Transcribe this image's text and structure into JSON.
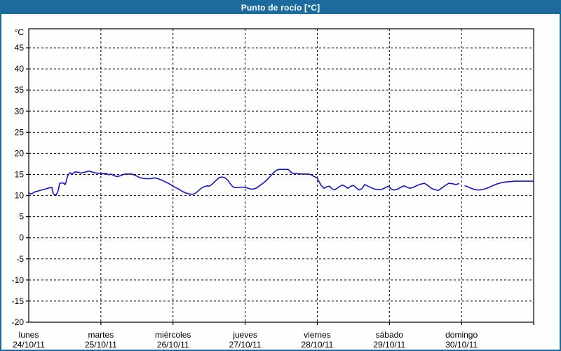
{
  "window": {
    "title": "Punto de rocío [°C]"
  },
  "colors": {
    "titlebar_bg": "#1c6a9e",
    "titlebar_text": "#ffffff",
    "page_bg": "#fdfefd",
    "axis": "#000000",
    "grid": "#000000",
    "series_line": "#1414c8"
  },
  "chart_data": {
    "type": "line",
    "title": "Punto de rocío [°C]",
    "y_unit_label": "°C",
    "ylim": [
      -20,
      49.5
    ],
    "yticks": [
      -20,
      -15,
      -10,
      -5,
      0,
      5,
      10,
      15,
      20,
      25,
      30,
      35,
      40,
      45
    ],
    "grid": true,
    "legend": "none",
    "x_axis": {
      "xlim_days": [
        0,
        7
      ],
      "days": [
        {
          "name": "lunes",
          "date": "24/10/11"
        },
        {
          "name": "martes",
          "date": "25/10/11"
        },
        {
          "name": "miércoles",
          "date": "26/10/11"
        },
        {
          "name": "jueves",
          "date": "27/10/11"
        },
        {
          "name": "viernes",
          "date": "28/10/11"
        },
        {
          "name": "sábado",
          "date": "29/10/11"
        },
        {
          "name": "domingo",
          "date": "30/10/11"
        }
      ]
    },
    "series": [
      {
        "name": "Punto de rocío",
        "color": "#1414c8",
        "units": "°C",
        "x_units": "days from 24/10/11 00:00",
        "segments": [
          [
            [
              0.0,
              10.6
            ],
            [
              0.039,
              10.4
            ],
            [
              0.088,
              10.9
            ],
            [
              0.156,
              11.2
            ],
            [
              0.224,
              11.5
            ],
            [
              0.282,
              11.8
            ],
            [
              0.321,
              11.9
            ],
            [
              0.34,
              10.4
            ],
            [
              0.379,
              10.1
            ],
            [
              0.408,
              11.2
            ],
            [
              0.428,
              12.9
            ],
            [
              0.476,
              13.0
            ],
            [
              0.506,
              12.6
            ],
            [
              0.544,
              14.9
            ],
            [
              0.574,
              15.4
            ],
            [
              0.603,
              15.1
            ],
            [
              0.642,
              15.6
            ],
            [
              0.7,
              15.5
            ],
            [
              0.719,
              15.3
            ],
            [
              0.768,
              15.5
            ],
            [
              0.836,
              15.8
            ],
            [
              0.914,
              15.4
            ],
            [
              1.001,
              15.2
            ],
            [
              1.079,
              15.2
            ],
            [
              1.108,
              14.9
            ],
            [
              1.137,
              15.1
            ],
            [
              1.186,
              14.7
            ],
            [
              1.225,
              14.5
            ],
            [
              1.273,
              14.7
            ],
            [
              1.332,
              15.1
            ],
            [
              1.429,
              15.1
            ],
            [
              1.497,
              14.6
            ],
            [
              1.546,
              14.2
            ],
            [
              1.614,
              14.0
            ],
            [
              1.692,
              14.0
            ],
            [
              1.74,
              14.2
            ],
            [
              1.789,
              14.0
            ],
            [
              1.838,
              13.7
            ],
            [
              1.886,
              13.3
            ],
            [
              1.935,
              12.9
            ],
            [
              1.993,
              12.3
            ],
            [
              2.032,
              11.9
            ],
            [
              2.081,
              11.5
            ],
            [
              2.129,
              11.0
            ],
            [
              2.178,
              10.6
            ],
            [
              2.226,
              10.4
            ],
            [
              2.275,
              10.3
            ],
            [
              2.304,
              10.5
            ],
            [
              2.343,
              11.0
            ],
            [
              2.382,
              11.6
            ],
            [
              2.421,
              12.0
            ],
            [
              2.469,
              12.3
            ],
            [
              2.499,
              12.2
            ],
            [
              2.537,
              12.6
            ],
            [
              2.586,
              13.4
            ],
            [
              2.635,
              14.2
            ],
            [
              2.673,
              14.4
            ],
            [
              2.712,
              14.3
            ],
            [
              2.761,
              13.6
            ],
            [
              2.81,
              12.4
            ],
            [
              2.848,
              11.9
            ],
            [
              2.907,
              11.9
            ],
            [
              2.955,
              12.0
            ],
            [
              3.004,
              11.9
            ],
            [
              3.062,
              11.6
            ],
            [
              3.101,
              11.5
            ],
            [
              3.15,
              11.7
            ],
            [
              3.198,
              12.3
            ],
            [
              3.247,
              12.9
            ],
            [
              3.296,
              13.6
            ],
            [
              3.344,
              14.5
            ],
            [
              3.393,
              15.4
            ],
            [
              3.432,
              16.0
            ],
            [
              3.471,
              16.2
            ],
            [
              3.597,
              16.2
            ],
            [
              3.626,
              15.7
            ],
            [
              3.655,
              15.3
            ],
            [
              3.704,
              15.2
            ],
            [
              3.782,
              15.1
            ],
            [
              3.879,
              15.1
            ],
            [
              3.918,
              14.9
            ],
            [
              3.957,
              14.5
            ],
            [
              3.996,
              14.2
            ],
            [
              4.025,
              13.3
            ],
            [
              4.054,
              12.4
            ],
            [
              4.093,
              11.7
            ],
            [
              4.132,
              12.1
            ],
            [
              4.171,
              12.2
            ],
            [
              4.21,
              11.5
            ],
            [
              4.249,
              11.4
            ],
            [
              4.297,
              12.0
            ],
            [
              4.346,
              12.5
            ],
            [
              4.385,
              12.2
            ],
            [
              4.424,
              11.7
            ],
            [
              4.463,
              12.2
            ],
            [
              4.502,
              12.4
            ],
            [
              4.541,
              11.8
            ],
            [
              4.58,
              11.3
            ],
            [
              4.618,
              11.6
            ],
            [
              4.657,
              12.6
            ],
            [
              4.706,
              12.2
            ],
            [
              4.755,
              11.8
            ],
            [
              4.803,
              11.5
            ],
            [
              4.852,
              11.4
            ],
            [
              4.9,
              11.5
            ],
            [
              4.949,
              11.9
            ],
            [
              4.978,
              12.2
            ],
            [
              5.007,
              11.9
            ],
            [
              5.027,
              11.5
            ],
            [
              5.066,
              11.3
            ],
            [
              5.114,
              11.5
            ],
            [
              5.163,
              12.0
            ],
            [
              5.202,
              12.3
            ],
            [
              5.241,
              12.0
            ],
            [
              5.289,
              11.7
            ],
            [
              5.338,
              12.0
            ],
            [
              5.387,
              12.4
            ],
            [
              5.435,
              12.7
            ],
            [
              5.484,
              12.9
            ],
            [
              5.533,
              12.4
            ],
            [
              5.581,
              11.7
            ],
            [
              5.63,
              11.4
            ],
            [
              5.678,
              11.2
            ],
            [
              5.727,
              11.8
            ],
            [
              5.776,
              12.4
            ],
            [
              5.824,
              12.9
            ],
            [
              5.873,
              12.8
            ],
            [
              5.922,
              12.6
            ],
            [
              5.961,
              12.8
            ]
          ],
          [
            [
              6.049,
              12.3
            ],
            [
              6.097,
              12.0
            ],
            [
              6.135,
              11.7
            ],
            [
              6.184,
              11.4
            ],
            [
              6.232,
              11.3
            ],
            [
              6.281,
              11.4
            ],
            [
              6.33,
              11.6
            ],
            [
              6.378,
              11.9
            ],
            [
              6.427,
              12.3
            ],
            [
              6.485,
              12.7
            ],
            [
              6.543,
              13.0
            ],
            [
              6.602,
              13.2
            ],
            [
              6.67,
              13.3
            ],
            [
              6.747,
              13.4
            ],
            [
              7.0,
              13.4
            ]
          ]
        ]
      }
    ]
  }
}
